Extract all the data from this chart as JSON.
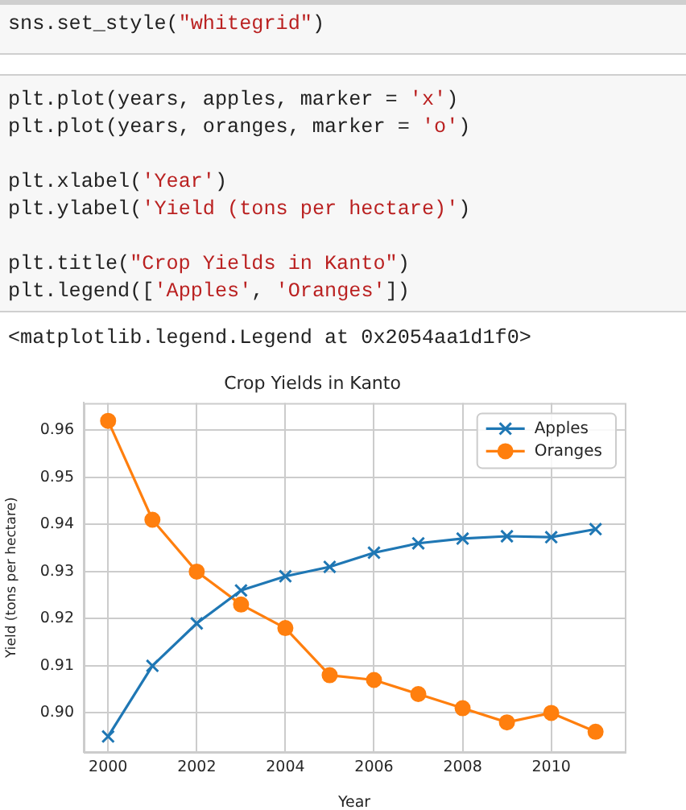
{
  "chart_data": {
    "type": "line",
    "title": "Crop Yields in Kanto",
    "xlabel": "Year",
    "ylabel": "Yield (tons per hectare)",
    "annotations": [
      "sns.set_style(\"whitegrid\")",
      "plt.plot(years, apples, marker = 'x')\nplt.plot(years, oranges, marker = 'o')\n\nplt.xlabel('Year')\nplt.ylabel('Yield (tons per hectare)')\n\nplt.title(\"Crop Yields in Kanto\")\nplt.legend(['Apples', 'Oranges'])",
      "<matplotlib.legend.Legend at 0x2054aa1d1f0>"
    ],
    "x": [
      2000,
      2001,
      2002,
      2003,
      2004,
      2005,
      2006,
      2007,
      2008,
      2009,
      2010,
      2011
    ],
    "series": [
      {
        "name": "Apples",
        "color": "#1f77b4",
        "marker": "cross",
        "values": [
          0.895,
          0.91,
          0.919,
          0.926,
          0.929,
          0.931,
          0.934,
          0.936,
          0.937,
          0.9375,
          0.9373,
          0.939
        ]
      },
      {
        "name": "Oranges",
        "color": "#ff7f0e",
        "marker": "circle",
        "values": [
          0.962,
          0.941,
          0.93,
          0.923,
          0.918,
          0.908,
          0.907,
          0.904,
          0.901,
          0.898,
          0.9,
          0.896
        ]
      }
    ],
    "xlim": [
      1999.45,
      2011.66
    ],
    "xticks": [
      2000,
      2002,
      2004,
      2006,
      2008,
      2010
    ],
    "ylim": [
      0.8917,
      0.9658
    ],
    "yticks": [
      {
        "value": 0.9,
        "label": "0.90"
      },
      {
        "value": 0.91,
        "label": "0.91"
      },
      {
        "value": 0.92,
        "label": "0.92"
      },
      {
        "value": 0.93,
        "label": "0.93"
      },
      {
        "value": 0.94,
        "label": "0.94"
      },
      {
        "value": 0.95,
        "label": "0.95"
      },
      {
        "value": 0.96,
        "label": "0.96"
      }
    ],
    "grid": true,
    "legend": "top right",
    "line_style": "solid"
  }
}
